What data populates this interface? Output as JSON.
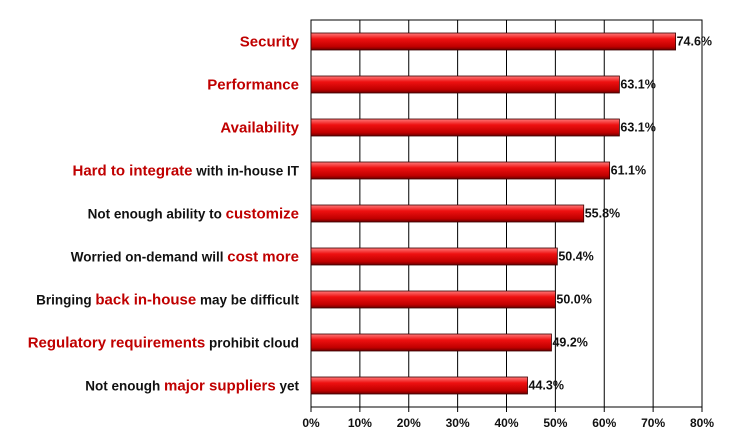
{
  "chart_data": {
    "type": "bar",
    "orientation": "horizontal",
    "categories": [
      "Security",
      "Performance",
      "Availability",
      "Hard to integrate with in-house IT",
      "Not enough ability to customize",
      "Worried on-demand will cost more",
      "Bringing back in-house may be difficult",
      "Regulatory requirements prohibit cloud",
      "Not enough major suppliers yet"
    ],
    "category_parts": [
      [
        {
          "text": "Security",
          "hl": true
        }
      ],
      [
        {
          "text": "Performance",
          "hl": true
        }
      ],
      [
        {
          "text": "Availability",
          "hl": true
        }
      ],
      [
        {
          "text": "Hard to integrate",
          "hl": true
        },
        {
          "text": " with in-house IT",
          "hl": false
        }
      ],
      [
        {
          "text": "Not enough ability to ",
          "hl": false
        },
        {
          "text": "customize",
          "hl": true
        }
      ],
      [
        {
          "text": "Worried on-demand will ",
          "hl": false
        },
        {
          "text": "cost more",
          "hl": true
        }
      ],
      [
        {
          "text": "Bringing ",
          "hl": false
        },
        {
          "text": "back in-house",
          "hl": true
        },
        {
          "text": " may be difficult",
          "hl": false
        }
      ],
      [
        {
          "text": "Regulatory requirements",
          "hl": true
        },
        {
          "text": " prohibit cloud",
          "hl": false
        }
      ],
      [
        {
          "text": "Not enough ",
          "hl": false
        },
        {
          "text": "major suppliers",
          "hl": true
        },
        {
          "text": " yet",
          "hl": false
        }
      ]
    ],
    "values": [
      74.6,
      63.1,
      63.1,
      61.1,
      55.8,
      50.4,
      50.0,
      49.2,
      44.3
    ],
    "value_labels": [
      "74.6%",
      "63.1%",
      "63.1%",
      "61.1%",
      "55.8%",
      "50.4%",
      "50.0%",
      "49.2%",
      "44.3%"
    ],
    "xlim": [
      0,
      80
    ],
    "xticks": [
      "0%",
      "10%",
      "20%",
      "30%",
      "40%",
      "50%",
      "60%",
      "70%",
      "80%"
    ],
    "grid": "vertical",
    "title": "",
    "xlabel": "",
    "ylabel": "",
    "colors": {
      "bar": "#e00000",
      "bar_dark": "#7a0000",
      "bar_light": "#ff6a6a",
      "highlight_text": "#c00000"
    }
  }
}
